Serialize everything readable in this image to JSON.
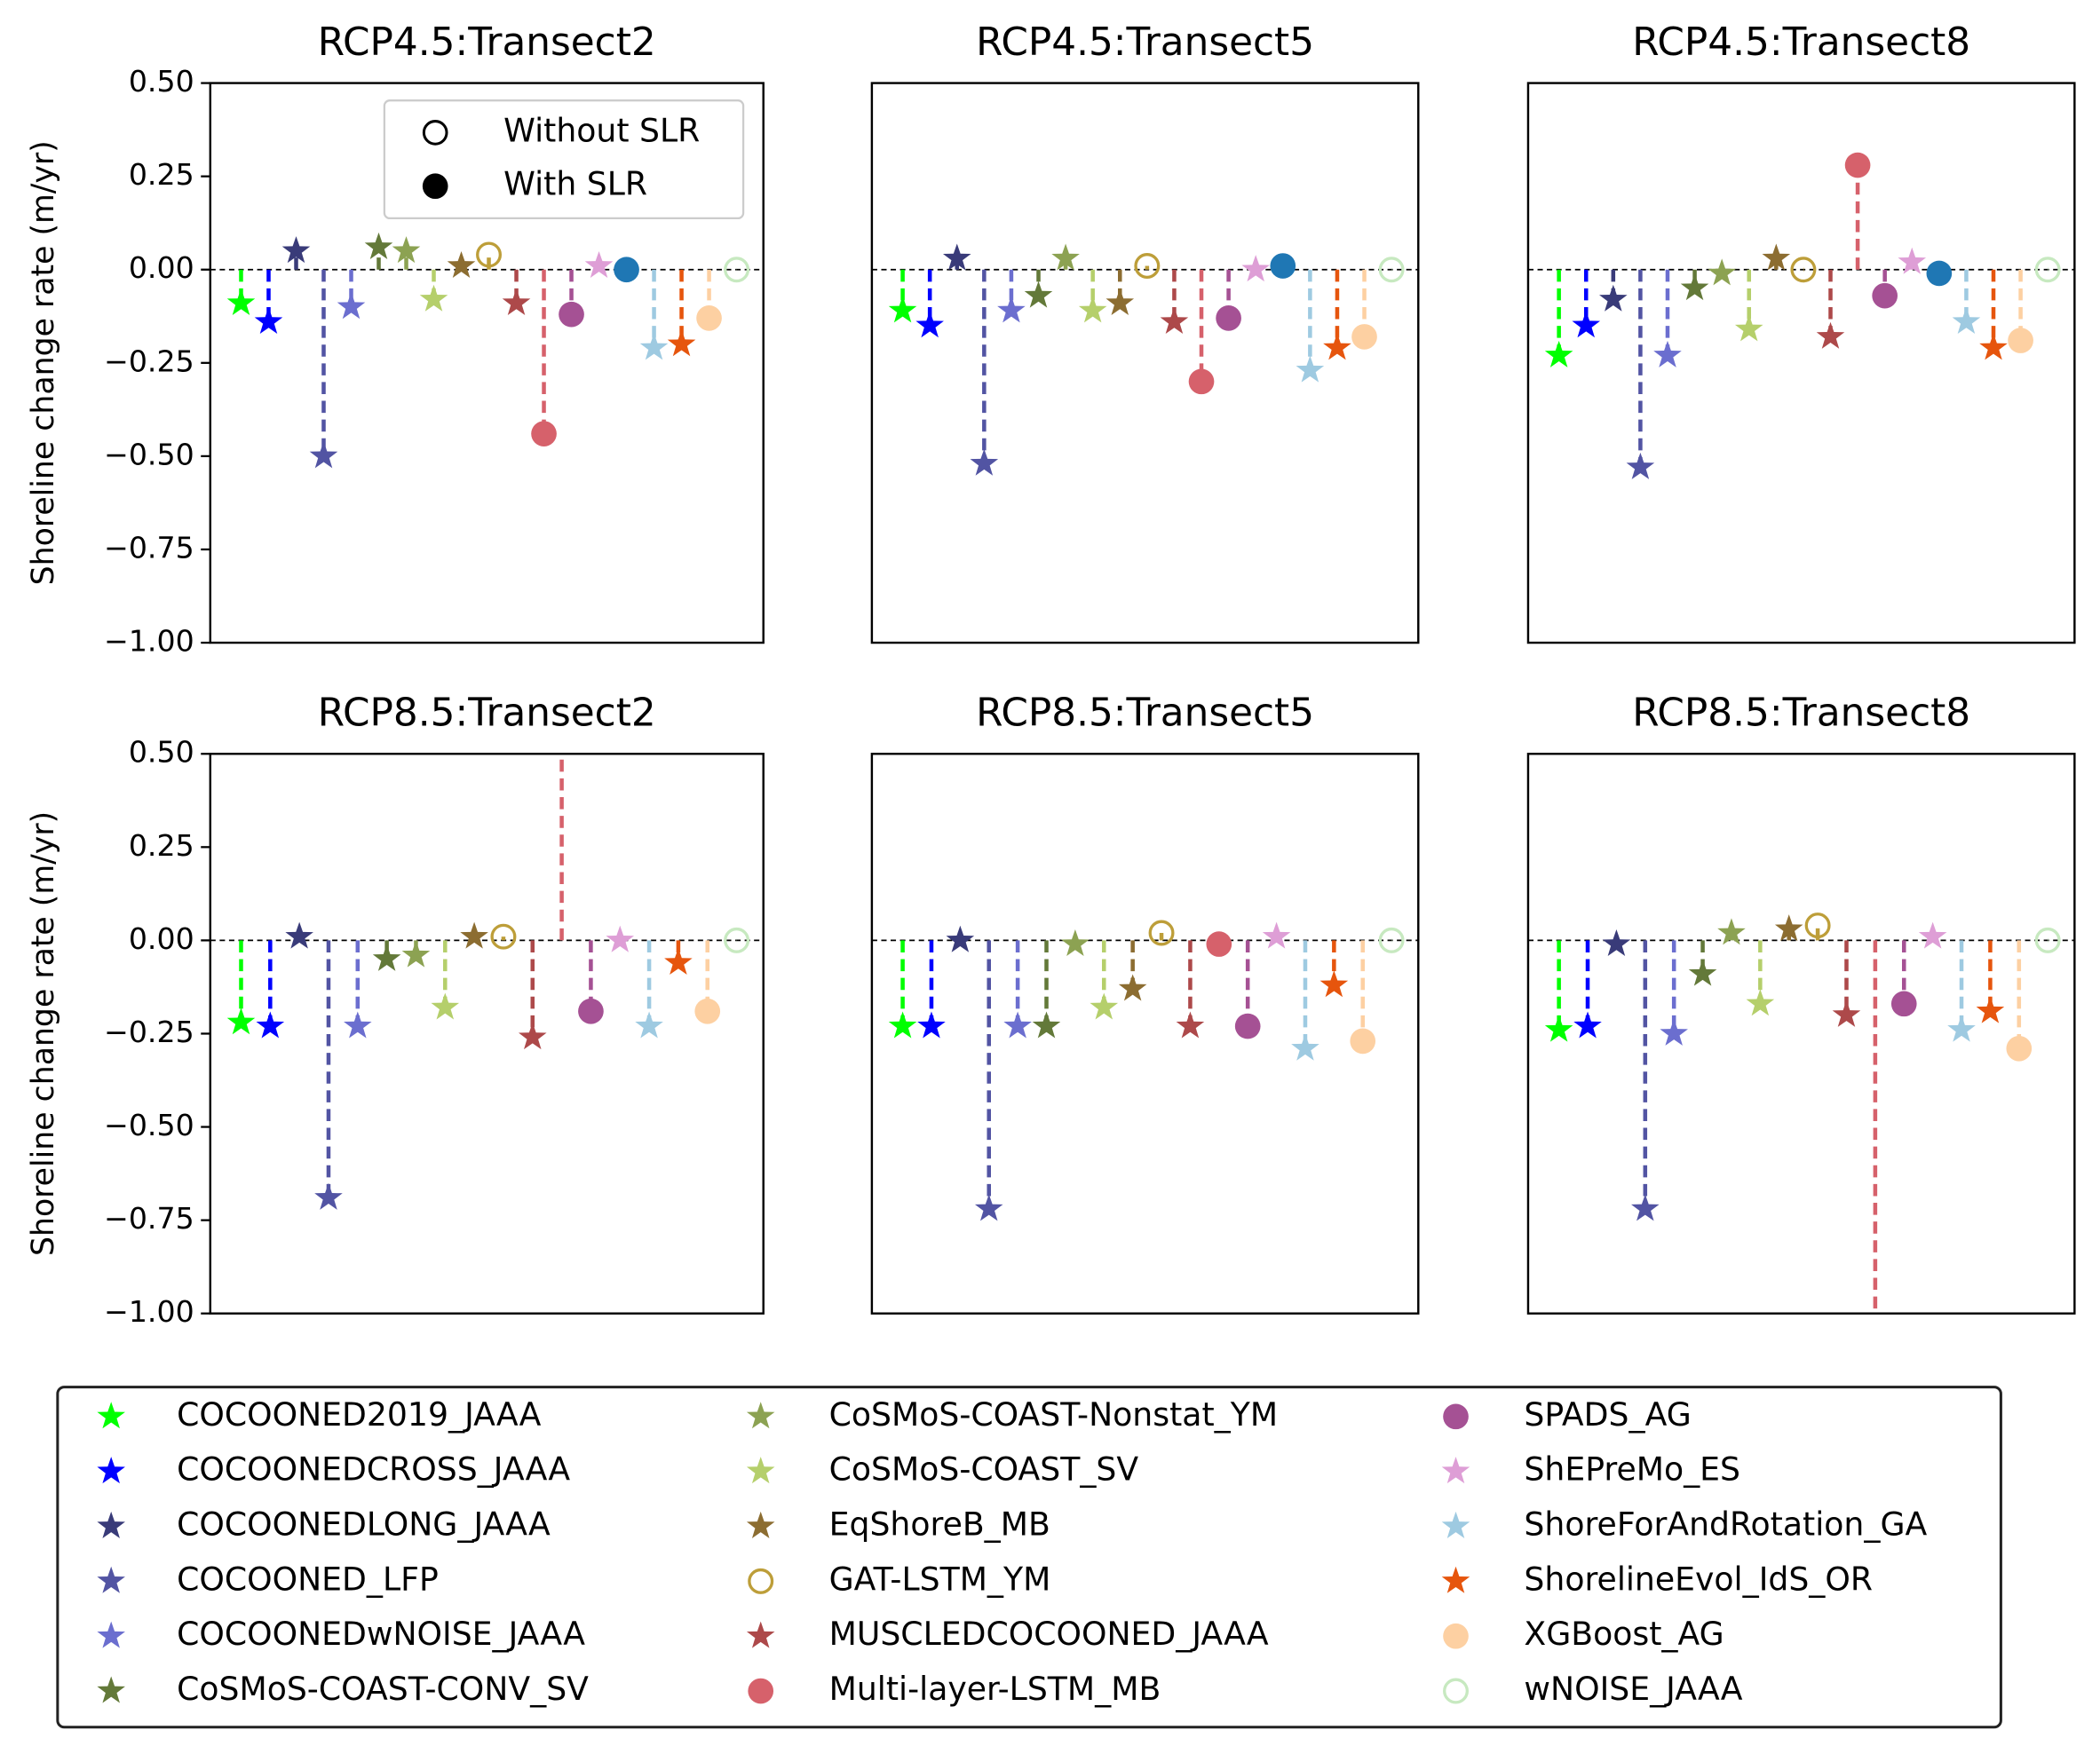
{
  "legend": {
    "entries": [
      {
        "name": "COCOONED2019_JAAA",
        "color": "#00ff00",
        "marker": "star"
      },
      {
        "name": "COCOONEDCROSS_JAAA",
        "color": "#0000ff",
        "marker": "star"
      },
      {
        "name": "COCOONEDLONG_JAAA",
        "color": "#393b79",
        "marker": "star"
      },
      {
        "name": "COCOONED_LFP",
        "color": "#5254a3",
        "marker": "star"
      },
      {
        "name": "COCOONEDwNOISE_JAAA",
        "color": "#6b6ecf",
        "marker": "star"
      },
      {
        "name": "CoSMoS-COAST-CONV_SV",
        "color": "#637939",
        "marker": "star"
      },
      {
        "name": "CoSMoS-COAST-Nonstat_YM",
        "color": "#8ca252",
        "marker": "star"
      },
      {
        "name": "CoSMoS-COAST_SV",
        "color": "#b5cf6b",
        "marker": "star"
      },
      {
        "name": "EqShoreB_MB",
        "color": "#8c6d31",
        "marker": "star"
      },
      {
        "name": "GAT-LSTM_YM",
        "color": "#bd9e39",
        "marker": "open-circle"
      },
      {
        "name": "MUSCLEDCOCOONED_JAAA",
        "color": "#ad494a",
        "marker": "star"
      },
      {
        "name": "Multi-layer-LSTM_MB",
        "color": "#d6616b",
        "marker": "circle"
      },
      {
        "name": "SPADS_AG",
        "color": "#a55194",
        "marker": "circle"
      },
      {
        "name": "ShEPreMo_ES",
        "color": "#de9ed6",
        "marker": "star"
      },
      {
        "name": null,
        "color": "#1f77b4",
        "marker": "circle"
      },
      {
        "name": "ShoreForAndRotation_GA",
        "color": "#9ecae1",
        "marker": "star"
      },
      {
        "name": "ShorelineEvol_IdS_OR",
        "color": "#e6550d",
        "marker": "star"
      },
      {
        "name": "XGBoost_AG",
        "color": "#fdd0a2",
        "marker": "circle"
      },
      {
        "name": "wNOISE_JAAA",
        "color": "#c7e9c0",
        "marker": "open-circle"
      }
    ]
  },
  "chart_data": [
    {
      "type": "stem",
      "title": "RCP4.5:Transect2",
      "ylabel": "Shoreline change rate (m/yr)",
      "ylim": [
        -1.0,
        0.5
      ],
      "yticks": [
        {
          "value": 0.5,
          "label": "0.50"
        },
        {
          "value": 0.25,
          "label": "0.25"
        },
        {
          "value": 0,
          "label": "0.00"
        },
        {
          "value": -0.25,
          "label": "−0.25"
        },
        {
          "value": -0.5,
          "label": "−0.50"
        },
        {
          "value": -0.75,
          "label": "−0.75"
        },
        {
          "value": -1.0,
          "label": "−1.00"
        }
      ],
      "slr_legend": [
        "Without SLR",
        "With SLR"
      ],
      "values": [
        -0.09,
        -0.14,
        0.05,
        -0.5,
        -0.1,
        0.06,
        0.05,
        -0.08,
        0.01,
        0.04,
        -0.09,
        -0.44,
        -0.12,
        0.01,
        0.0,
        -0.21,
        -0.2,
        -0.13,
        0.0
      ]
    },
    {
      "type": "stem",
      "title": "RCP4.5:Transect5",
      "ylim": [
        -1.0,
        0.5
      ],
      "values": [
        -0.11,
        -0.15,
        0.03,
        -0.52,
        -0.11,
        -0.07,
        0.03,
        -0.11,
        -0.09,
        0.01,
        -0.14,
        -0.3,
        -0.13,
        0.0,
        0.01,
        -0.27,
        -0.21,
        -0.18,
        0.0
      ]
    },
    {
      "type": "stem",
      "title": "RCP4.5:Transect8",
      "ylim": [
        -1.0,
        0.5
      ],
      "values": [
        -0.23,
        -0.15,
        -0.08,
        -0.53,
        -0.23,
        -0.05,
        -0.01,
        -0.16,
        0.03,
        0.0,
        -0.18,
        0.28,
        -0.07,
        0.02,
        -0.01,
        -0.14,
        -0.21,
        -0.19,
        0.0
      ]
    },
    {
      "type": "stem",
      "title": "RCP8.5:Transect2",
      "ylabel": "Shoreline change rate (m/yr)",
      "ylim": [
        -1.0,
        0.5
      ],
      "yticks": [
        {
          "value": 0.5,
          "label": "0.50"
        },
        {
          "value": 0.25,
          "label": "0.25"
        },
        {
          "value": 0,
          "label": "0.00"
        },
        {
          "value": -0.25,
          "label": "−0.25"
        },
        {
          "value": -0.5,
          "label": "−0.50"
        },
        {
          "value": -0.75,
          "label": "−0.75"
        },
        {
          "value": -1.0,
          "label": "−1.00"
        }
      ],
      "values": [
        -0.22,
        -0.23,
        0.01,
        -0.69,
        -0.23,
        -0.05,
        -0.04,
        -0.18,
        0.01,
        0.01,
        -0.26,
        0.6,
        -0.19,
        0.0,
        null,
        -0.23,
        -0.06,
        -0.19,
        0.0
      ]
    },
    {
      "type": "stem",
      "title": "RCP8.5:Transect5",
      "ylim": [
        -1.0,
        0.5
      ],
      "values": [
        -0.23,
        -0.23,
        0.0,
        -0.72,
        -0.23,
        -0.23,
        -0.01,
        -0.18,
        -0.13,
        0.02,
        -0.23,
        -0.01,
        -0.23,
        0.01,
        null,
        -0.29,
        -0.12,
        -0.27,
        0.0
      ]
    },
    {
      "type": "stem",
      "title": "RCP8.5:Transect8",
      "ylim": [
        -1.0,
        0.5
      ],
      "values": [
        -0.24,
        -0.23,
        -0.01,
        -0.72,
        -0.25,
        -0.09,
        0.02,
        -0.17,
        0.03,
        0.04,
        -0.2,
        -1.1,
        -0.17,
        0.01,
        null,
        -0.24,
        -0.19,
        -0.29,
        0.0
      ]
    }
  ]
}
